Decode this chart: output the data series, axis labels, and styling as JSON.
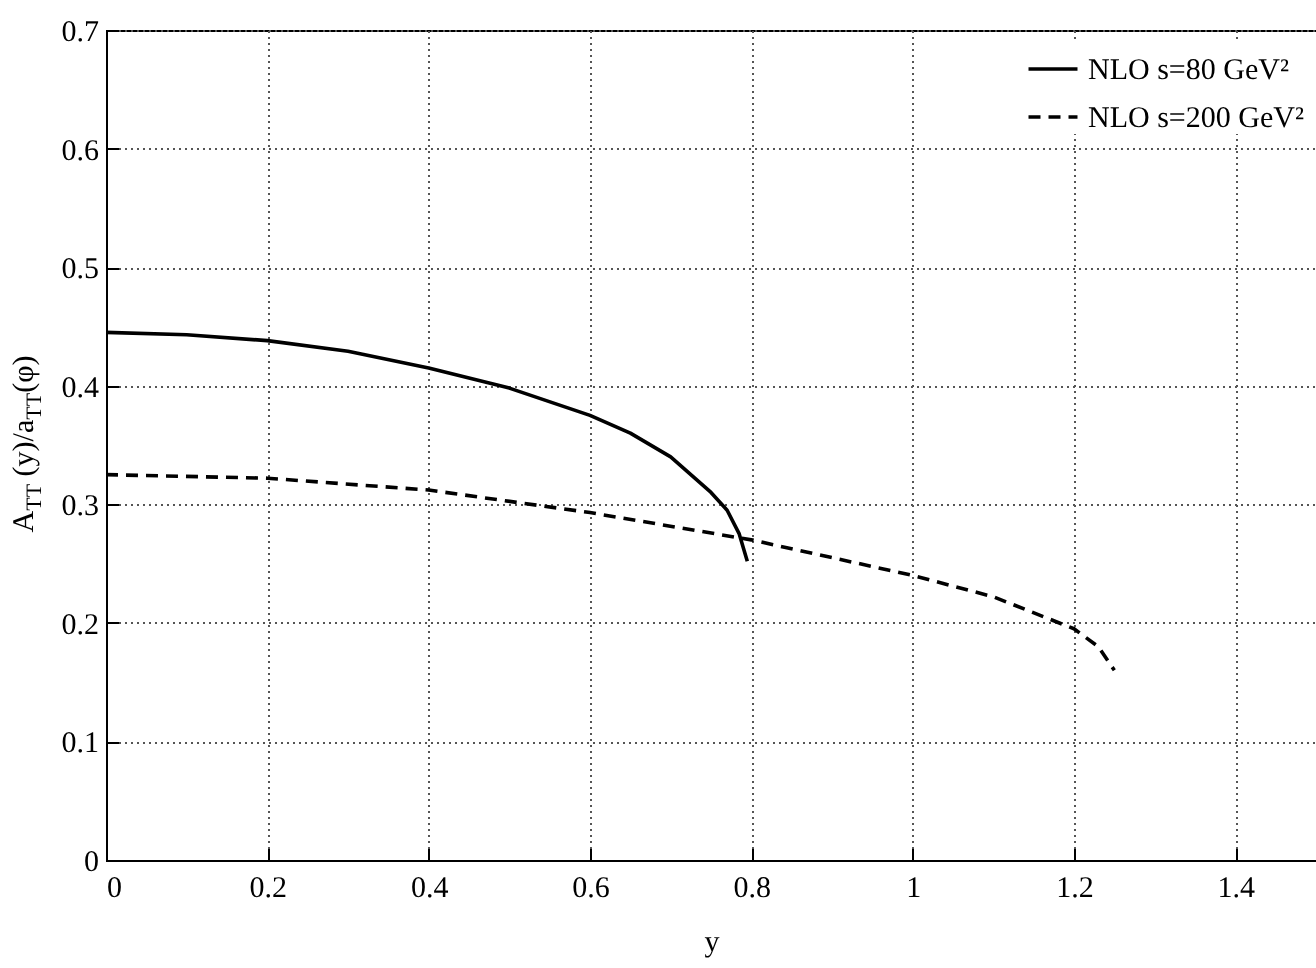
{
  "chart_data": {
    "type": "line",
    "xlabel": "y",
    "ylabel": "A$_{TT}$ (y)/a$_{TT}$(φ)",
    "xlim": [
      0,
      1.5
    ],
    "ylim": [
      0,
      0.7
    ],
    "xticks": [
      0,
      0.2,
      0.4,
      0.6,
      0.8,
      1,
      1.2,
      1.4
    ],
    "yticks": [
      0,
      0.1,
      0.2,
      0.3,
      0.4,
      0.5,
      0.6,
      0.7
    ],
    "grid": true,
    "legend": "top right",
    "marker": "none",
    "series": [
      {
        "name": "NLO s=80 GeV²",
        "color": "#000000",
        "line_style": "solid",
        "x": [
          0,
          0.1,
          0.2,
          0.3,
          0.4,
          0.5,
          0.6,
          0.65,
          0.7,
          0.75,
          0.77,
          0.785,
          0.795
        ],
        "values": [
          0.445,
          0.443,
          0.438,
          0.429,
          0.415,
          0.398,
          0.375,
          0.36,
          0.34,
          0.31,
          0.295,
          0.275,
          0.252
        ]
      },
      {
        "name": "NLO s=200 GeV²",
        "color": "#000000",
        "line_style": "dashed",
        "x": [
          0,
          0.2,
          0.4,
          0.6,
          0.8,
          1.0,
          1.1,
          1.2,
          1.23,
          1.25
        ],
        "values": [
          0.325,
          0.322,
          0.312,
          0.293,
          0.27,
          0.24,
          0.222,
          0.195,
          0.18,
          0.16
        ]
      }
    ]
  }
}
